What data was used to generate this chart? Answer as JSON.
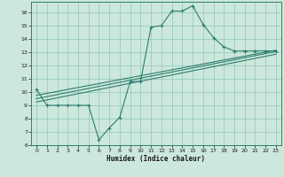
{
  "xlabel": "Humidex (Indice chaleur)",
  "bg_color": "#cce8dd",
  "line_color": "#2e7d6e",
  "grid_color": "#99ccbb",
  "xlim": [
    -0.5,
    23.5
  ],
  "ylim": [
    6,
    16.8
  ],
  "xticks": [
    0,
    1,
    2,
    3,
    4,
    5,
    6,
    7,
    8,
    9,
    10,
    11,
    12,
    13,
    14,
    15,
    16,
    17,
    18,
    19,
    20,
    21,
    22,
    23
  ],
  "yticks": [
    6,
    7,
    8,
    9,
    10,
    11,
    12,
    13,
    14,
    15,
    16
  ],
  "line1_x": [
    0,
    1,
    2,
    3,
    4,
    5,
    6,
    7,
    8,
    9,
    10,
    11,
    12,
    13,
    14,
    15,
    16,
    17,
    18,
    19,
    20,
    21,
    22,
    23
  ],
  "line1_y": [
    10.2,
    9.0,
    9.0,
    9.0,
    9.0,
    9.0,
    6.4,
    7.3,
    8.1,
    10.8,
    10.8,
    14.9,
    15.0,
    16.1,
    16.1,
    16.5,
    15.1,
    14.1,
    13.4,
    13.1,
    13.1,
    13.1,
    13.1,
    13.1
  ],
  "line2_x": [
    0,
    23
  ],
  "line2_y": [
    9.5,
    13.05
  ],
  "line3_x": [
    0,
    23
  ],
  "line3_y": [
    9.75,
    13.15
  ],
  "line4_x": [
    0,
    23
  ],
  "line4_y": [
    9.25,
    12.85
  ]
}
